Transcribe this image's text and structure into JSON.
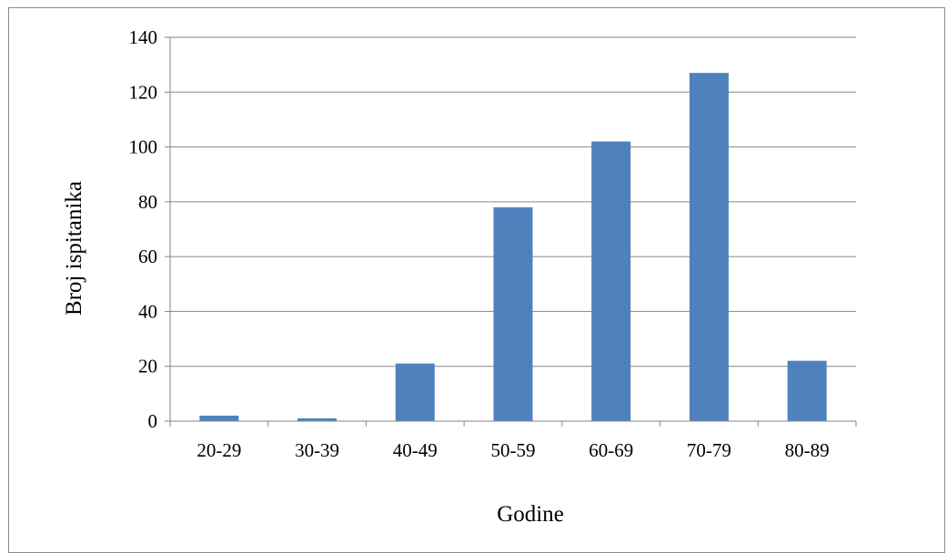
{
  "chart_data": {
    "type": "bar",
    "title": "",
    "xlabel": "Godine",
    "ylabel": "Broj ispitanika",
    "categories": [
      "20-29",
      "30-39",
      "40-49",
      "50-59",
      "60-69",
      "70-79",
      "80-89"
    ],
    "values": [
      2,
      1,
      21,
      78,
      102,
      127,
      22
    ],
    "ylim": [
      0,
      140
    ],
    "yticks": [
      "0",
      "20",
      "40",
      "60",
      "80",
      "100",
      "120",
      "140"
    ],
    "grid": true,
    "legend": "none",
    "bar_color": "#4f81bd",
    "grid_color": "#868686"
  }
}
